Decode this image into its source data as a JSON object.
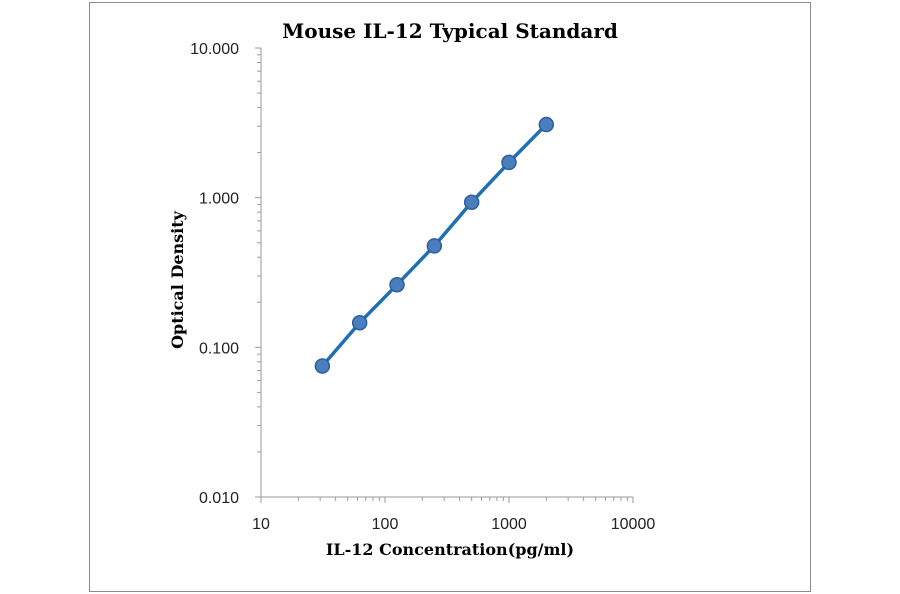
{
  "chart_data": {
    "type": "scatter",
    "title": "Mouse IL-12 Typical Standard",
    "xlabel": "IL-12 Concentration(pg/ml)",
    "ylabel": "Optical Density",
    "x_scale": "log",
    "y_scale": "log",
    "xlim": [
      10,
      10000
    ],
    "ylim": [
      0.01,
      10
    ],
    "x_tick_labels": [
      "10",
      "100",
      "1000",
      "10000"
    ],
    "y_tick_labels": [
      "0.010",
      "0.100",
      "1.000",
      "10.000"
    ],
    "grid": false,
    "legend": "none",
    "series": [
      {
        "x": [
          31.25,
          62.5,
          125,
          250,
          500,
          1000,
          2000
        ],
        "y": [
          0.075,
          0.146,
          0.262,
          0.476,
          0.932,
          1.72,
          3.08
        ]
      }
    ],
    "fit_line": true,
    "colors": {
      "line": "#1f6fb4",
      "marker": "#4a7ebf"
    }
  }
}
